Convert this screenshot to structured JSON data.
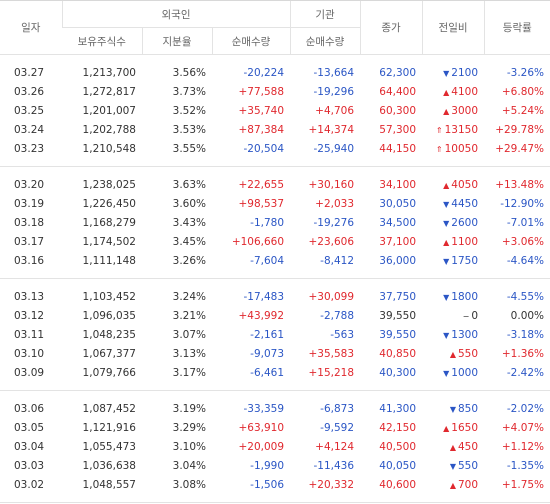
{
  "table": {
    "header_top": [
      "일자",
      "외국인",
      "기관",
      "종가",
      "전일비",
      "등락률"
    ],
    "header_sub": [
      "보유주식수",
      "지분율",
      "순매수량",
      "순매수량"
    ],
    "groups": [
      [
        {
          "cells": [
            "03.27",
            "1,213,700",
            "3.56%",
            "-20,224",
            "-13,664",
            "62,300",
            "2100",
            "-3.26%"
          ],
          "icon": "▼",
          "tone": "down"
        },
        {
          "cells": [
            "03.26",
            "1,272,817",
            "3.73%",
            "+77,588",
            "-19,296",
            "64,400",
            "4100",
            "+6.80%"
          ],
          "icon": "▲",
          "tone": "up"
        },
        {
          "cells": [
            "03.25",
            "1,201,007",
            "3.52%",
            "+35,740",
            "+4,706",
            "60,300",
            "3000",
            "+5.24%"
          ],
          "icon": "▲",
          "tone": "up"
        },
        {
          "cells": [
            "03.24",
            "1,202,788",
            "3.53%",
            "+87,384",
            "+14,374",
            "57,300",
            "13150",
            "+29.78%"
          ],
          "icon": "⇑",
          "tone": "limit"
        },
        {
          "cells": [
            "03.23",
            "1,210,548",
            "3.55%",
            "-20,504",
            "-25,940",
            "44,150",
            "10050",
            "+29.47%"
          ],
          "icon": "⇑",
          "tone": "limit"
        }
      ],
      [
        {
          "cells": [
            "03.20",
            "1,238,025",
            "3.63%",
            "+22,655",
            "+30,160",
            "34,100",
            "4050",
            "+13.48%"
          ],
          "icon": "▲",
          "tone": "up"
        },
        {
          "cells": [
            "03.19",
            "1,226,450",
            "3.60%",
            "+98,537",
            "+2,033",
            "30,050",
            "4450",
            "-12.90%"
          ],
          "icon": "▼",
          "tone": "down"
        },
        {
          "cells": [
            "03.18",
            "1,168,279",
            "3.43%",
            "-1,780",
            "-19,276",
            "34,500",
            "2600",
            "-7.01%"
          ],
          "icon": "▼",
          "tone": "down"
        },
        {
          "cells": [
            "03.17",
            "1,174,502",
            "3.45%",
            "+106,660",
            "+23,606",
            "37,100",
            "1100",
            "+3.06%"
          ],
          "icon": "▲",
          "tone": "up"
        },
        {
          "cells": [
            "03.16",
            "1,111,148",
            "3.26%",
            "-7,604",
            "-8,412",
            "36,000",
            "1750",
            "-4.64%"
          ],
          "icon": "▼",
          "tone": "down"
        }
      ],
      [
        {
          "cells": [
            "03.13",
            "1,103,452",
            "3.24%",
            "-17,483",
            "+30,099",
            "37,750",
            "1800",
            "-4.55%"
          ],
          "icon": "▼",
          "tone": "down"
        },
        {
          "cells": [
            "03.12",
            "1,096,035",
            "3.21%",
            "+43,992",
            "-2,788",
            "39,550",
            "0",
            "0.00%"
          ],
          "icon": "−",
          "tone": "flat"
        },
        {
          "cells": [
            "03.11",
            "1,048,235",
            "3.07%",
            "-2,161",
            "-563",
            "39,550",
            "1300",
            "-3.18%"
          ],
          "icon": "▼",
          "tone": "down"
        },
        {
          "cells": [
            "03.10",
            "1,067,377",
            "3.13%",
            "-9,073",
            "+35,583",
            "40,850",
            "550",
            "+1.36%"
          ],
          "icon": "▲",
          "tone": "up"
        },
        {
          "cells": [
            "03.09",
            "1,079,766",
            "3.17%",
            "-6,461",
            "+15,218",
            "40,300",
            "1000",
            "-2.42%"
          ],
          "icon": "▼",
          "tone": "down"
        }
      ],
      [
        {
          "cells": [
            "03.06",
            "1,087,452",
            "3.19%",
            "-33,359",
            "-6,873",
            "41,300",
            "850",
            "-2.02%"
          ],
          "icon": "▼",
          "tone": "down"
        },
        {
          "cells": [
            "03.05",
            "1,121,916",
            "3.29%",
            "+63,910",
            "-9,592",
            "42,150",
            "1650",
            "+4.07%"
          ],
          "icon": "▲",
          "tone": "up"
        },
        {
          "cells": [
            "03.04",
            "1,055,473",
            "3.10%",
            "+20,009",
            "+4,124",
            "40,500",
            "450",
            "+1.12%"
          ],
          "icon": "▲",
          "tone": "up"
        },
        {
          "cells": [
            "03.03",
            "1,036,638",
            "3.04%",
            "-1,990",
            "-11,436",
            "40,050",
            "550",
            "-1.35%"
          ],
          "icon": "▼",
          "tone": "down"
        },
        {
          "cells": [
            "03.02",
            "1,048,557",
            "3.08%",
            "-1,506",
            "+20,332",
            "40,600",
            "700",
            "+1.75%"
          ],
          "icon": "▲",
          "tone": "up"
        }
      ]
    ]
  }
}
